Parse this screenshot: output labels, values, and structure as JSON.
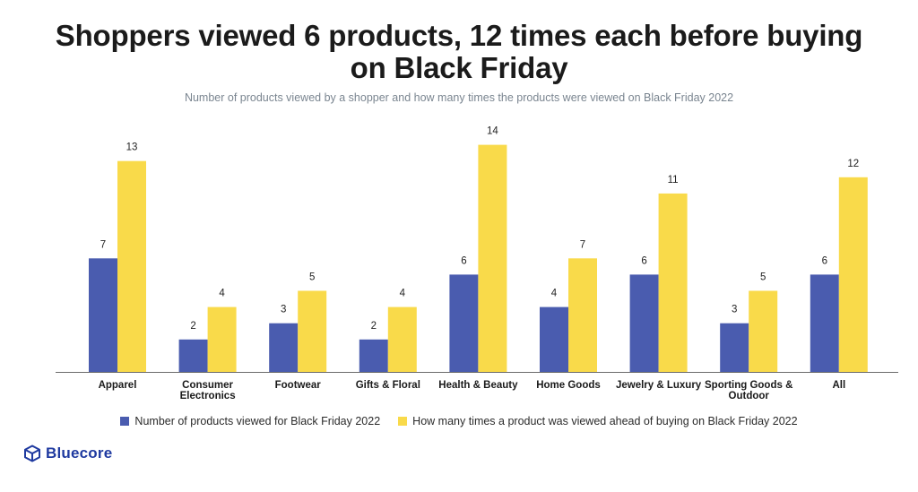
{
  "title": "Shoppers viewed 6 products, 12 times each before buying on Black Friday",
  "subtitle": "Number of products viewed by a shopper and how many times the products were viewed on Black Friday 2022",
  "brand": {
    "name": "Bluecore",
    "icon": "bluecore-cube-logo-icon",
    "color": "#1f3aa0"
  },
  "colors": {
    "series1": "#4a5caf",
    "series2": "#f9da4a"
  },
  "chart_data": {
    "type": "bar",
    "categories": [
      [
        "Apparel"
      ],
      [
        "Consumer",
        "Electronics"
      ],
      [
        "Footwear"
      ],
      [
        "Gifts & Floral"
      ],
      [
        "Health & Beauty"
      ],
      [
        "Home Goods"
      ],
      [
        "Jewelry & Luxury"
      ],
      [
        "Sporting Goods &",
        "Outdoor"
      ],
      [
        "All"
      ]
    ],
    "series": [
      {
        "name": "Number of products viewed for Black Friday 2022",
        "values": [
          7,
          2,
          3,
          2,
          6,
          4,
          6,
          3,
          6
        ],
        "labels": [
          "7",
          "2",
          "3",
          "2",
          "6",
          "4",
          "6",
          "3",
          "6"
        ],
        "color": "#4a5caf"
      },
      {
        "name": "How many times a product was viewed ahead of buying on Black Friday 2022",
        "values": [
          13,
          4,
          5,
          4,
          14,
          7,
          11,
          5,
          12
        ],
        "labels": [
          "13",
          "4",
          "5",
          "4",
          "14",
          "7",
          "11",
          "5",
          "12"
        ],
        "color": "#f9da4a"
      }
    ],
    "ylim": [
      0,
      14
    ],
    "grid": false,
    "legend": "bottom",
    "xlabel": "",
    "ylabel": ""
  }
}
